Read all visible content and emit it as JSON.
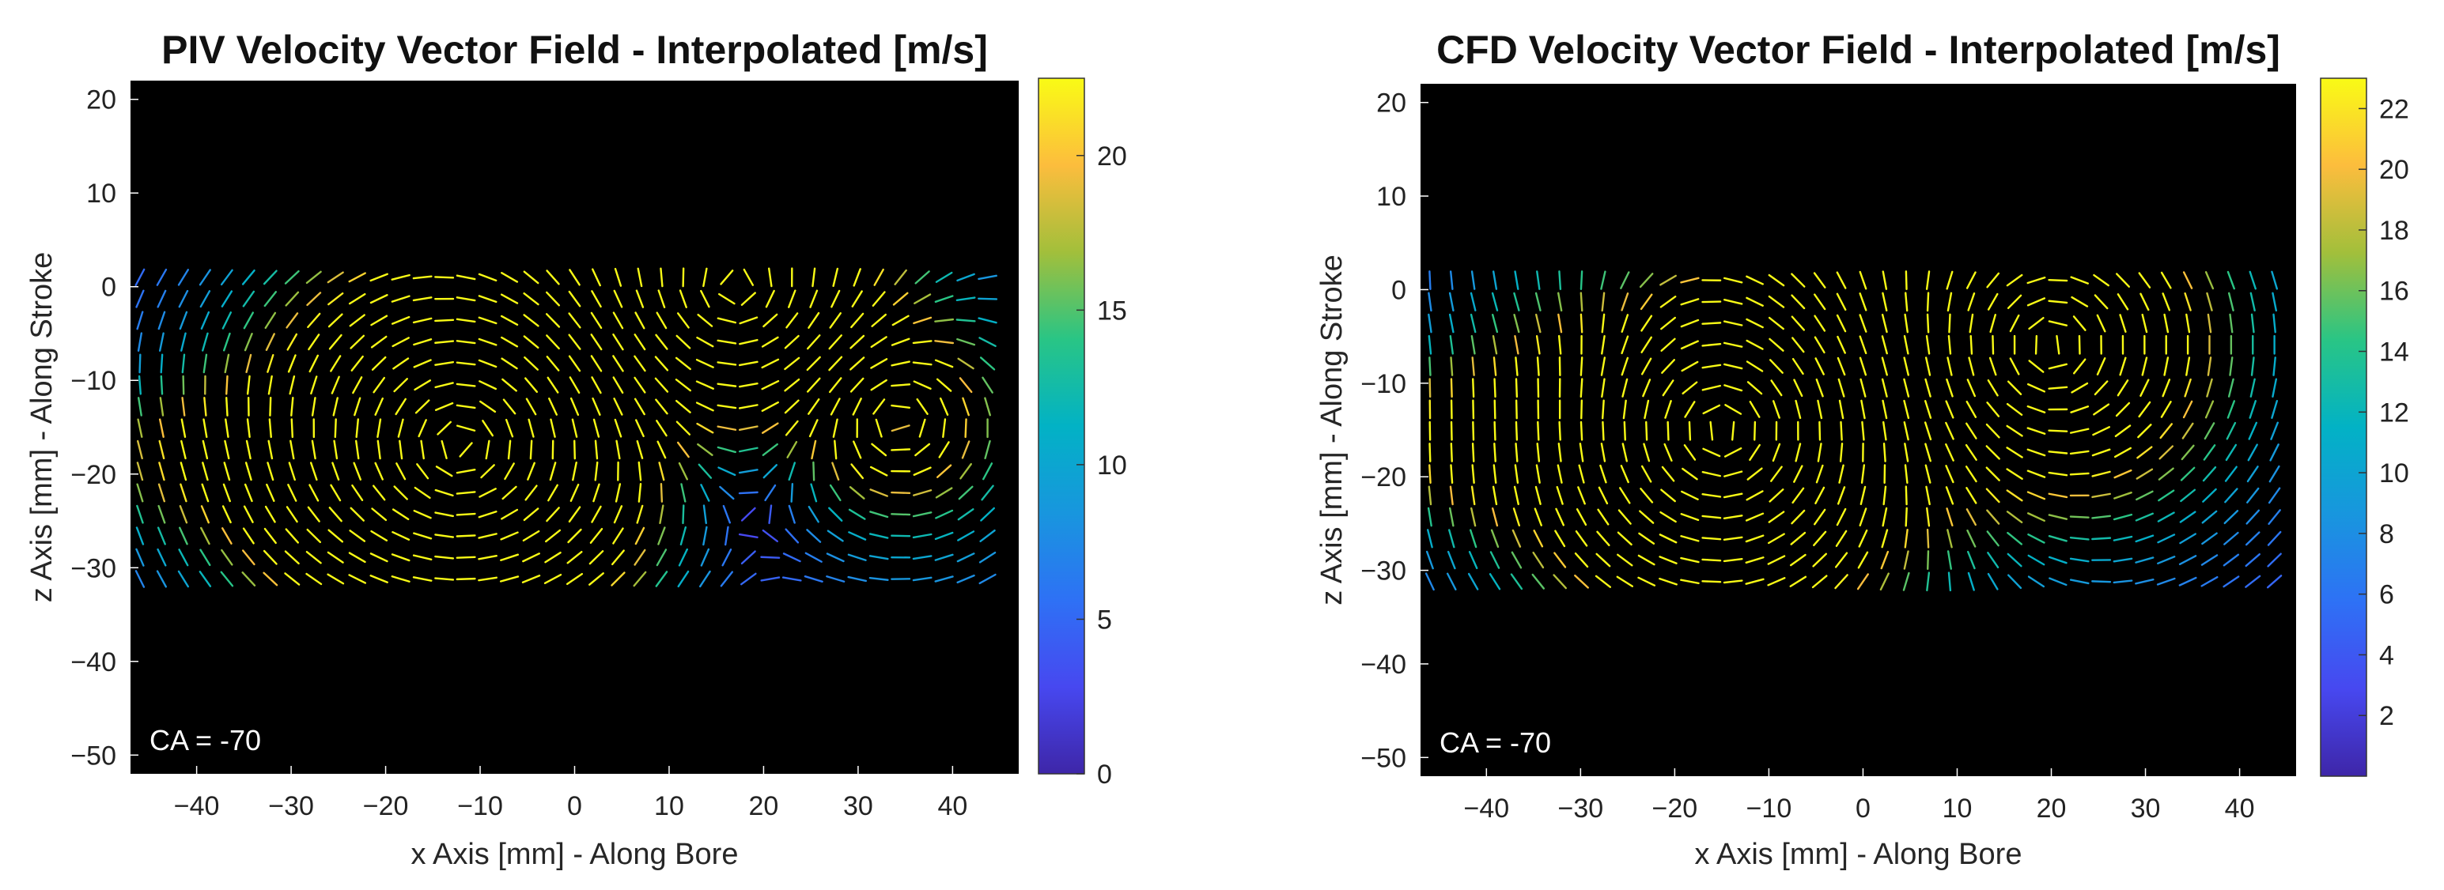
{
  "chart_data": [
    {
      "type": "quiver",
      "title": "PIV Velocity Vector Field - Interpolated [m/s]",
      "xlabel": "x Axis [mm] - Along Bore",
      "ylabel": "z Axis [mm] - Along Stroke",
      "xlim": [
        -47,
        47
      ],
      "ylim": [
        -52,
        22
      ],
      "xticks": [
        -40,
        -30,
        -20,
        -10,
        0,
        10,
        20,
        30,
        40
      ],
      "yticks": [
        20,
        10,
        0,
        -10,
        -20,
        -30,
        -40,
        -50
      ],
      "grid": false,
      "background": "#000000",
      "annotation": "CA = -70",
      "colorbar": {
        "label": "",
        "range": [
          0,
          22.5
        ],
        "ticks": [
          0,
          5,
          10,
          15,
          20
        ],
        "colormap": "parula"
      },
      "field": {
        "x_range": [
          -46,
          45
        ],
        "z_range": [
          -32,
          1
        ],
        "spacing_mm": 2.3,
        "vortices": [
          {
            "x": -12,
            "z": -17,
            "strength": 1.0,
            "sense": "ccw"
          },
          {
            "x": 17,
            "z": 0,
            "strength": 0.5,
            "sense": "cw"
          },
          {
            "x": 34,
            "z": -14,
            "strength": 0.3,
            "sense": "ccw"
          }
        ],
        "jets": [
          {
            "x": -15,
            "z": -27,
            "speed": 20,
            "direction_deg": 0
          },
          {
            "x": -38,
            "z": -18,
            "speed": 15,
            "direction_deg": -70
          }
        ],
        "max_speed": 22
      }
    },
    {
      "type": "quiver",
      "title": "CFD Velocity Vector Field - Interpolated [m/s]",
      "xlabel": "x Axis [mm] - Along Bore",
      "ylabel": "z Axis [mm] - Along Stroke",
      "xlim": [
        -47,
        46
      ],
      "ylim": [
        -52,
        22
      ],
      "xticks": [
        -40,
        -30,
        -20,
        -10,
        0,
        10,
        20,
        30,
        40
      ],
      "yticks": [
        20,
        10,
        0,
        -10,
        -20,
        -30,
        -40,
        -50
      ],
      "grid": false,
      "background": "#000000",
      "annotation": "CA = -70",
      "colorbar": {
        "label": "",
        "range": [
          0,
          23
        ],
        "ticks": [
          2,
          4,
          6,
          8,
          10,
          12,
          14,
          16,
          18,
          20,
          22
        ],
        "colormap": "parula"
      },
      "field": {
        "x_range": [
          -46,
          45
        ],
        "z_range": [
          -32,
          1
        ],
        "spacing_mm": 2.3,
        "vortices": [
          {
            "x": -15,
            "z": -15,
            "strength": 1.0,
            "sense": "ccw"
          },
          {
            "x": 20,
            "z": -6,
            "strength": 0.6,
            "sense": "cw"
          }
        ],
        "jets": [
          {
            "x": -25,
            "z": -3,
            "speed": 18,
            "direction_deg": 0
          },
          {
            "x": -42,
            "z": -16,
            "speed": 16,
            "direction_deg": -90
          }
        ],
        "max_speed": 22
      }
    }
  ]
}
